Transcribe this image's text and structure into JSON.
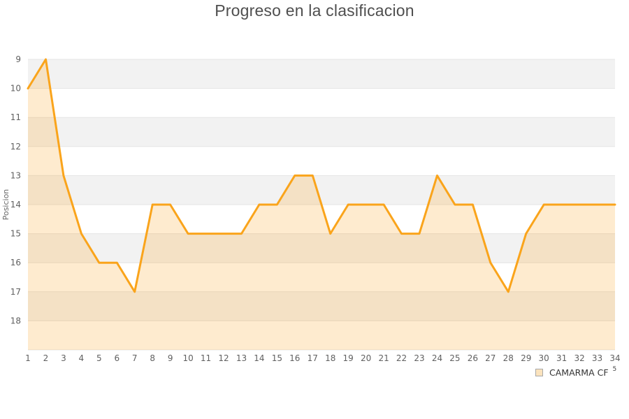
{
  "header": {
    "title": "Progreso en la clasificacion"
  },
  "chart_data": {
    "type": "line",
    "title": "Progreso en la clasificacion",
    "xlabel": "",
    "ylabel": "Posicion",
    "x": [
      1,
      2,
      3,
      4,
      5,
      6,
      7,
      8,
      9,
      10,
      11,
      12,
      13,
      14,
      15,
      16,
      17,
      18,
      19,
      20,
      21,
      22,
      23,
      24,
      25,
      26,
      27,
      28,
      29,
      30,
      31,
      32,
      33,
      34
    ],
    "series": [
      {
        "name": "CAMARMA CF",
        "values": [
          10,
          9,
          13,
          15,
          16,
          16,
          17,
          14,
          14,
          15,
          15,
          15,
          15,
          14,
          14,
          13,
          13,
          15,
          14,
          14,
          14,
          15,
          15,
          13,
          14,
          14,
          16,
          17,
          15,
          14,
          14,
          14,
          14,
          14
        ]
      }
    ],
    "y_ticks": [
      9,
      10,
      11,
      12,
      13,
      14,
      15,
      16,
      17,
      18
    ],
    "ylim": [
      9,
      19
    ],
    "y_inverted": true,
    "grid": "alternating-horizontal-bands",
    "legend_position": "bottom-right",
    "colors": {
      "line": "#FAA41B",
      "area_fill": "rgba(250,166,35,0.22)",
      "band_gray": "#f2f2f2",
      "band_white": "#ffffff",
      "gridline": "#e4e4e4",
      "tick_label": "#606060",
      "title": "#4f4f4f"
    }
  },
  "legend": {
    "label": "CAMARMA CF",
    "superscript": "5",
    "marker_fill": "#fbe3bd",
    "marker_border": "#a8a8a8"
  }
}
